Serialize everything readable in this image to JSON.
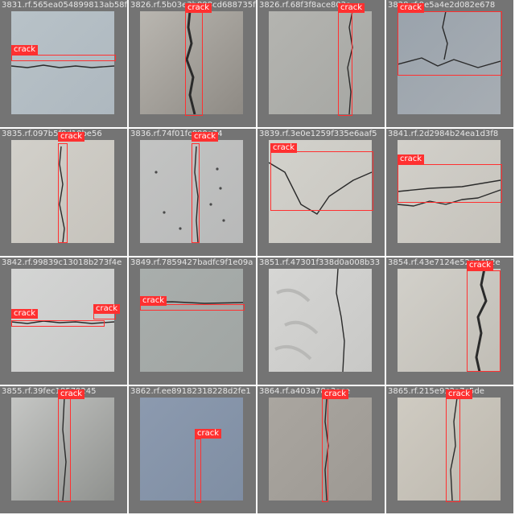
{
  "mosaic": {
    "tiles": [
      {
        "filename": "3831.rf.565ea054899813ab58f",
        "label": "crack"
      },
      {
        "filename": "3826.rf.5b03e3b898cd688735f",
        "label": "crack"
      },
      {
        "filename": "3826.rf.68f3f8ace802a",
        "label": "crack"
      },
      {
        "filename": "3828.rf.9e5a4e2d082e678",
        "label": "crack"
      },
      {
        "filename": "3835.rf.097b5f8d10be56",
        "label": "crack"
      },
      {
        "filename": "3836.rf.74f01fc000a74",
        "label": "crack"
      },
      {
        "filename": "3839.rf.3e0e1259f335e6aaf5",
        "label": "crack"
      },
      {
        "filename": "3841.rf.2d2984b24ea1d3f8",
        "label": "crack"
      },
      {
        "filename": "3842.rf.99839c13018b273f4e",
        "label": "crack"
      },
      {
        "filename": "3849.rf.7859427badfc9f1e09a",
        "label": "crack"
      },
      {
        "filename": "3851.rf.47301f338d0a008b33",
        "label": ""
      },
      {
        "filename": "3854.rf.43e7124e52a7452e",
        "label": "crack"
      },
      {
        "filename": "3855.rf.39fec18579245",
        "label": "crack"
      },
      {
        "filename": "3862.rf.ee89182318228d2fe1",
        "label": "crack"
      },
      {
        "filename": "3864.rf.a403a78a3ace",
        "label": "crack"
      },
      {
        "filename": "3865.rf.215e932a7c5de",
        "label": "crack"
      }
    ]
  }
}
